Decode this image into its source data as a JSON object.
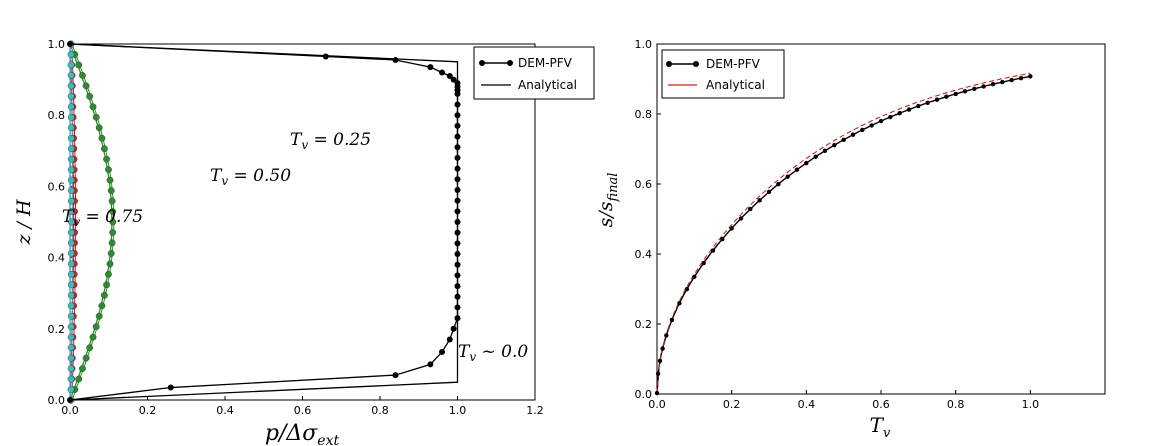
{
  "chart_data": [
    {
      "type": "line",
      "xlabel": "p/Δσ_ext",
      "ylabel": "z / H",
      "xlim": [
        0.0,
        1.2
      ],
      "ylim": [
        0.0,
        1.0
      ],
      "xticks": [
        "0.0",
        "0.2",
        "0.4",
        "0.6",
        "0.8",
        "1.0",
        "1.2"
      ],
      "yticks": [
        "0.0",
        "0.2",
        "0.4",
        "0.6",
        "0.8",
        "1.0"
      ],
      "grid": false,
      "legend": {
        "placement": "top-right-outside",
        "entries": [
          {
            "label": "DEM-PFV",
            "style": "line-with-dots",
            "color": "#000000"
          },
          {
            "label": "Analytical",
            "style": "line",
            "color": "#000000"
          }
        ]
      },
      "annotations": [
        "T_v = 0.25",
        "T_v = 0.50",
        "T_v = 0.75",
        "T_v ~ 0.0"
      ],
      "series": [
        {
          "name": "T_v ~ 0.0",
          "color": "#000000",
          "dem": {
            "x": [
              0.0,
              0.26,
              0.84,
              0.93,
              0.96,
              0.98,
              0.99,
              1.0,
              1.0,
              1.0,
              1.0,
              1.0,
              1.0,
              1.0,
              1.0,
              1.0,
              1.0,
              1.0,
              1.0,
              1.0,
              1.0,
              1.0,
              1.0,
              1.0,
              1.0,
              1.0,
              1.0,
              1.0,
              1.0,
              1.0,
              1.0,
              1.0,
              0.99,
              0.98,
              0.96,
              0.93,
              0.84,
              0.66,
              0.0
            ],
            "y": [
              0.0,
              0.035,
              0.07,
              0.1,
              0.135,
              0.17,
              0.2,
              0.23,
              0.26,
              0.29,
              0.32,
              0.35,
              0.38,
              0.41,
              0.44,
              0.47,
              0.5,
              0.53,
              0.56,
              0.59,
              0.62,
              0.65,
              0.68,
              0.71,
              0.74,
              0.77,
              0.8,
              0.83,
              0.86,
              0.87,
              0.88,
              0.89,
              0.9,
              0.91,
              0.92,
              0.935,
              0.955,
              0.965,
              1.0
            ]
          },
          "analytical": {
            "x": [
              0.0,
              1.0,
              1.0,
              0.0
            ],
            "y": [
              0.0,
              0.05,
              0.95,
              1.0
            ]
          }
        },
        {
          "name": "T_v = 0.25",
          "color": "#2e8b2e",
          "k": 0.25
        },
        {
          "name": "T_v = 0.50",
          "color": "#cc2222",
          "k": 0.5
        },
        {
          "name": "T_v = 0.75",
          "color": "#3fb8c0",
          "k": 0.75
        }
      ]
    },
    {
      "type": "line",
      "xlabel": "T_v",
      "ylabel": "s/s_final",
      "xlim": [
        0.0,
        1.2
      ],
      "ylim": [
        0.0,
        1.0
      ],
      "xticks": [
        "0.0",
        "0.2",
        "0.4",
        "0.6",
        "0.8",
        "1.0"
      ],
      "yticks": [
        "0.0",
        "0.2",
        "0.4",
        "0.6",
        "0.8",
        "1.0"
      ],
      "grid": false,
      "legend": {
        "placement": "top-left",
        "entries": [
          {
            "label": "DEM-PFV",
            "style": "line-with-dots",
            "color": "#000000"
          },
          {
            "label": "Analytical",
            "style": "dashed",
            "color": "#cc2222"
          }
        ]
      },
      "series": [
        {
          "name": "DEM-PFV",
          "color": "#000000",
          "x_end": 1.0,
          "y_end": 0.92
        },
        {
          "name": "Analytical",
          "color": "#cc2222",
          "x_end": 1.0,
          "y_end": 0.93
        }
      ]
    }
  ]
}
